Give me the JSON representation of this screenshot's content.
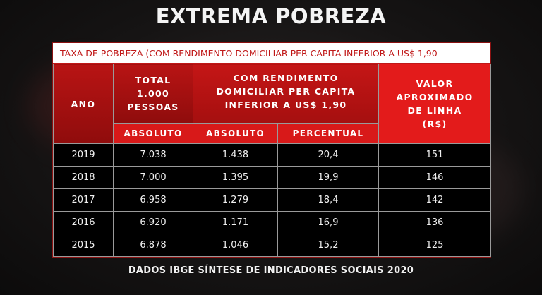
{
  "title": "EXTREMA POBREZA",
  "subtitle": "TAXA DE POBREZA (COM RENDIMENTO DOMICILIAR PER CAPITA INFERIOR A US$ 1,90",
  "headers": {
    "ano": "ANO",
    "total": "TOTAL 1.000 PESSOAS",
    "rendimento": "COM RENDIMENTO DOMICILIAR PER CAPITA INFERIOR A US$ 1,90",
    "valor": "VALOR APROXIMADO DE LINHA (R$)",
    "absoluto_total": "ABSOLUTO",
    "absoluto": "ABSOLUTO",
    "percentual": "PERCENTUAL"
  },
  "rows": [
    {
      "ano": "2019",
      "total": "7.038",
      "absoluto": "1.438",
      "percentual": "20,4",
      "valor": "151"
    },
    {
      "ano": "2018",
      "total": "7.000",
      "absoluto": "1.395",
      "percentual": "19,9",
      "valor": "146"
    },
    {
      "ano": "2017",
      "total": "6.958",
      "absoluto": "1.279",
      "percentual": "18,4",
      "valor": "142"
    },
    {
      "ano": "2016",
      "total": "6.920",
      "absoluto": "1.171",
      "percentual": "16,9",
      "valor": "136"
    },
    {
      "ano": "2015",
      "total": "6.878",
      "absoluto": "1.046",
      "percentual": "15,2",
      "valor": "125"
    }
  ],
  "footer": "DADOS IBGE SÍNTESE DE INDICADORES SOCIAIS 2020",
  "colors": {
    "accent": "#e31b1b",
    "dark_red": "#8f0c0c",
    "background": "#161414"
  }
}
